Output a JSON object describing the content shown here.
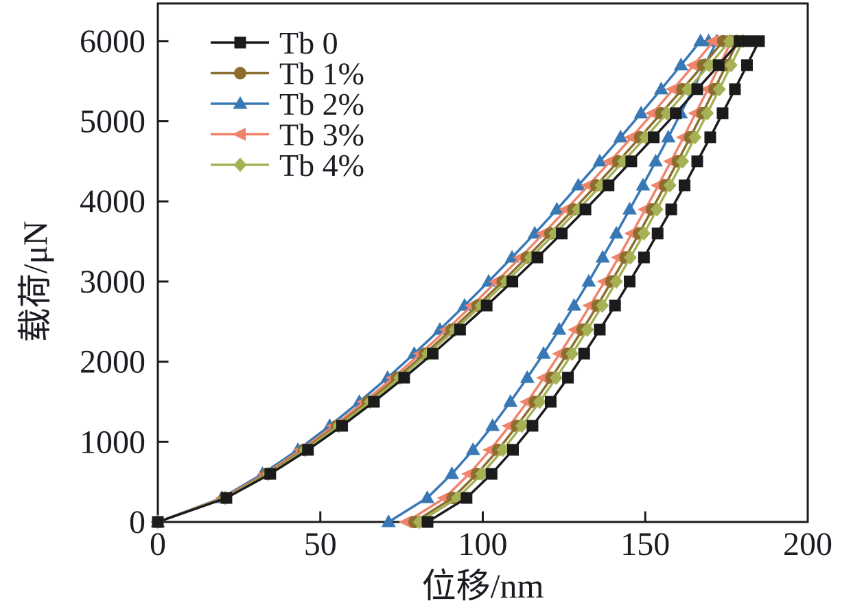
{
  "figure": {
    "background": "#ffffff"
  },
  "chart_data": {
    "type": "line",
    "title": "",
    "xlabel": "位移/nm",
    "ylabel": "载荷/μN",
    "xlim": [
      0,
      200
    ],
    "ylim": [
      0,
      6470
    ],
    "x_ticks": [
      0,
      50,
      100,
      150,
      200
    ],
    "y_ticks": [
      0,
      1000,
      2000,
      3000,
      4000,
      5000,
      6000
    ],
    "grid": false,
    "legend_position": "top-left",
    "peak_load_uN": 6000,
    "load_steps_uN": [
      0,
      300,
      600,
      900,
      1200,
      1500,
      1800,
      2100,
      2400,
      2700,
      3000,
      3300,
      3600,
      3900,
      4200,
      4500,
      4800,
      5100,
      5400,
      5700,
      6000
    ],
    "series": [
      {
        "name": "Tb 0",
        "color": "#1b1b1b",
        "marker": "square",
        "max_depth_nm": 185,
        "residual_depth_nm": 83,
        "loading_disp_nm": [
          0,
          21.1,
          34.6,
          46.2,
          56.7,
          66.5,
          75.8,
          84.6,
          93.0,
          101.2,
          109.1,
          116.8,
          124.3,
          131.6,
          138.7,
          145.7,
          152.6,
          159.4,
          166.0,
          172.6,
          179.0
        ],
        "hold_disp_nm": [
          182.0,
          185.0
        ],
        "unloading_disp_nm": [
          83.0,
          95.0,
          102.7,
          109.3,
          115.3,
          120.9,
          126.2,
          131.2,
          136.0,
          140.7,
          145.2,
          149.6,
          153.8,
          158.0,
          162.1,
          166.0,
          170.0,
          173.8,
          177.6,
          181.3,
          185.0
        ]
      },
      {
        "name": "Tb 1%",
        "color": "#8c6f2e",
        "marker": "circle",
        "max_depth_nm": 178.5,
        "residual_depth_nm": 79,
        "loading_disp_nm": [
          0,
          20.5,
          33.6,
          44.9,
          55.1,
          64.6,
          73.6,
          82.2,
          90.4,
          98.4,
          106.1,
          113.5,
          120.8,
          127.9,
          134.9,
          141.7,
          148.4,
          154.9,
          161.4,
          167.8,
          174.0
        ],
        "hold_disp_nm": [
          176.3,
          178.5
        ],
        "unloading_disp_nm": [
          79.0,
          90.7,
          98.2,
          104.7,
          110.5,
          116.0,
          121.1,
          126.0,
          130.7,
          135.3,
          139.6,
          143.9,
          148.1,
          152.1,
          156.1,
          160.0,
          163.8,
          167.6,
          171.3,
          174.9,
          178.5
        ]
      },
      {
        "name": "Tb 2%",
        "color": "#3878b4",
        "marker": "triangle-up",
        "max_depth_nm": 172,
        "residual_depth_nm": 71,
        "loading_disp_nm": [
          0,
          19.7,
          32.2,
          43.1,
          52.9,
          62.0,
          70.7,
          78.9,
          86.8,
          94.4,
          101.8,
          109.0,
          116.0,
          122.8,
          129.4,
          136.0,
          142.4,
          148.7,
          154.9,
          161.0,
          167.0
        ],
        "hold_disp_nm": [
          169.5,
          172.0
        ],
        "unloading_disp_nm": [
          71.0,
          82.9,
          90.5,
          97.0,
          103.0,
          108.5,
          113.7,
          118.7,
          123.5,
          128.1,
          132.6,
          136.9,
          141.1,
          145.2,
          149.3,
          153.2,
          157.1,
          160.9,
          164.7,
          168.4,
          172.0
        ]
      },
      {
        "name": "Tb 3%",
        "color": "#ef836c",
        "marker": "triangle-left",
        "max_depth_nm": 176.5,
        "residual_depth_nm": 76.5,
        "loading_disp_nm": [
          0,
          20.1,
          33.0,
          44.1,
          54.2,
          63.5,
          72.4,
          80.8,
          88.9,
          96.7,
          104.2,
          111.6,
          118.7,
          125.7,
          132.5,
          139.2,
          145.8,
          152.3,
          158.6,
          164.9,
          171.0
        ],
        "hold_disp_nm": [
          173.8,
          176.5
        ],
        "unloading_disp_nm": [
          76.5,
          88.3,
          95.8,
          102.3,
          108.2,
          113.7,
          118.8,
          123.7,
          128.5,
          133.0,
          137.5,
          141.8,
          145.9,
          150.0,
          154.0,
          157.9,
          161.8,
          165.5,
          169.3,
          172.9,
          176.5
        ]
      },
      {
        "name": "Tb 4%",
        "color": "#a6b155",
        "marker": "diamond",
        "max_depth_nm": 180,
        "residual_depth_nm": 80.5,
        "loading_disp_nm": [
          0,
          20.7,
          34.0,
          45.4,
          55.7,
          65.4,
          74.5,
          83.1,
          91.5,
          99.5,
          107.3,
          114.8,
          122.2,
          129.4,
          136.4,
          143.3,
          150.1,
          156.7,
          163.2,
          169.7,
          176.0
        ],
        "hold_disp_nm": [
          178.0,
          180.0
        ],
        "unloading_disp_nm": [
          80.5,
          92.2,
          99.7,
          106.2,
          112.0,
          117.5,
          122.6,
          127.5,
          132.2,
          136.8,
          141.1,
          145.4,
          149.6,
          153.6,
          157.6,
          161.5,
          165.3,
          169.1,
          172.8,
          176.4,
          180.0
        ]
      }
    ]
  }
}
